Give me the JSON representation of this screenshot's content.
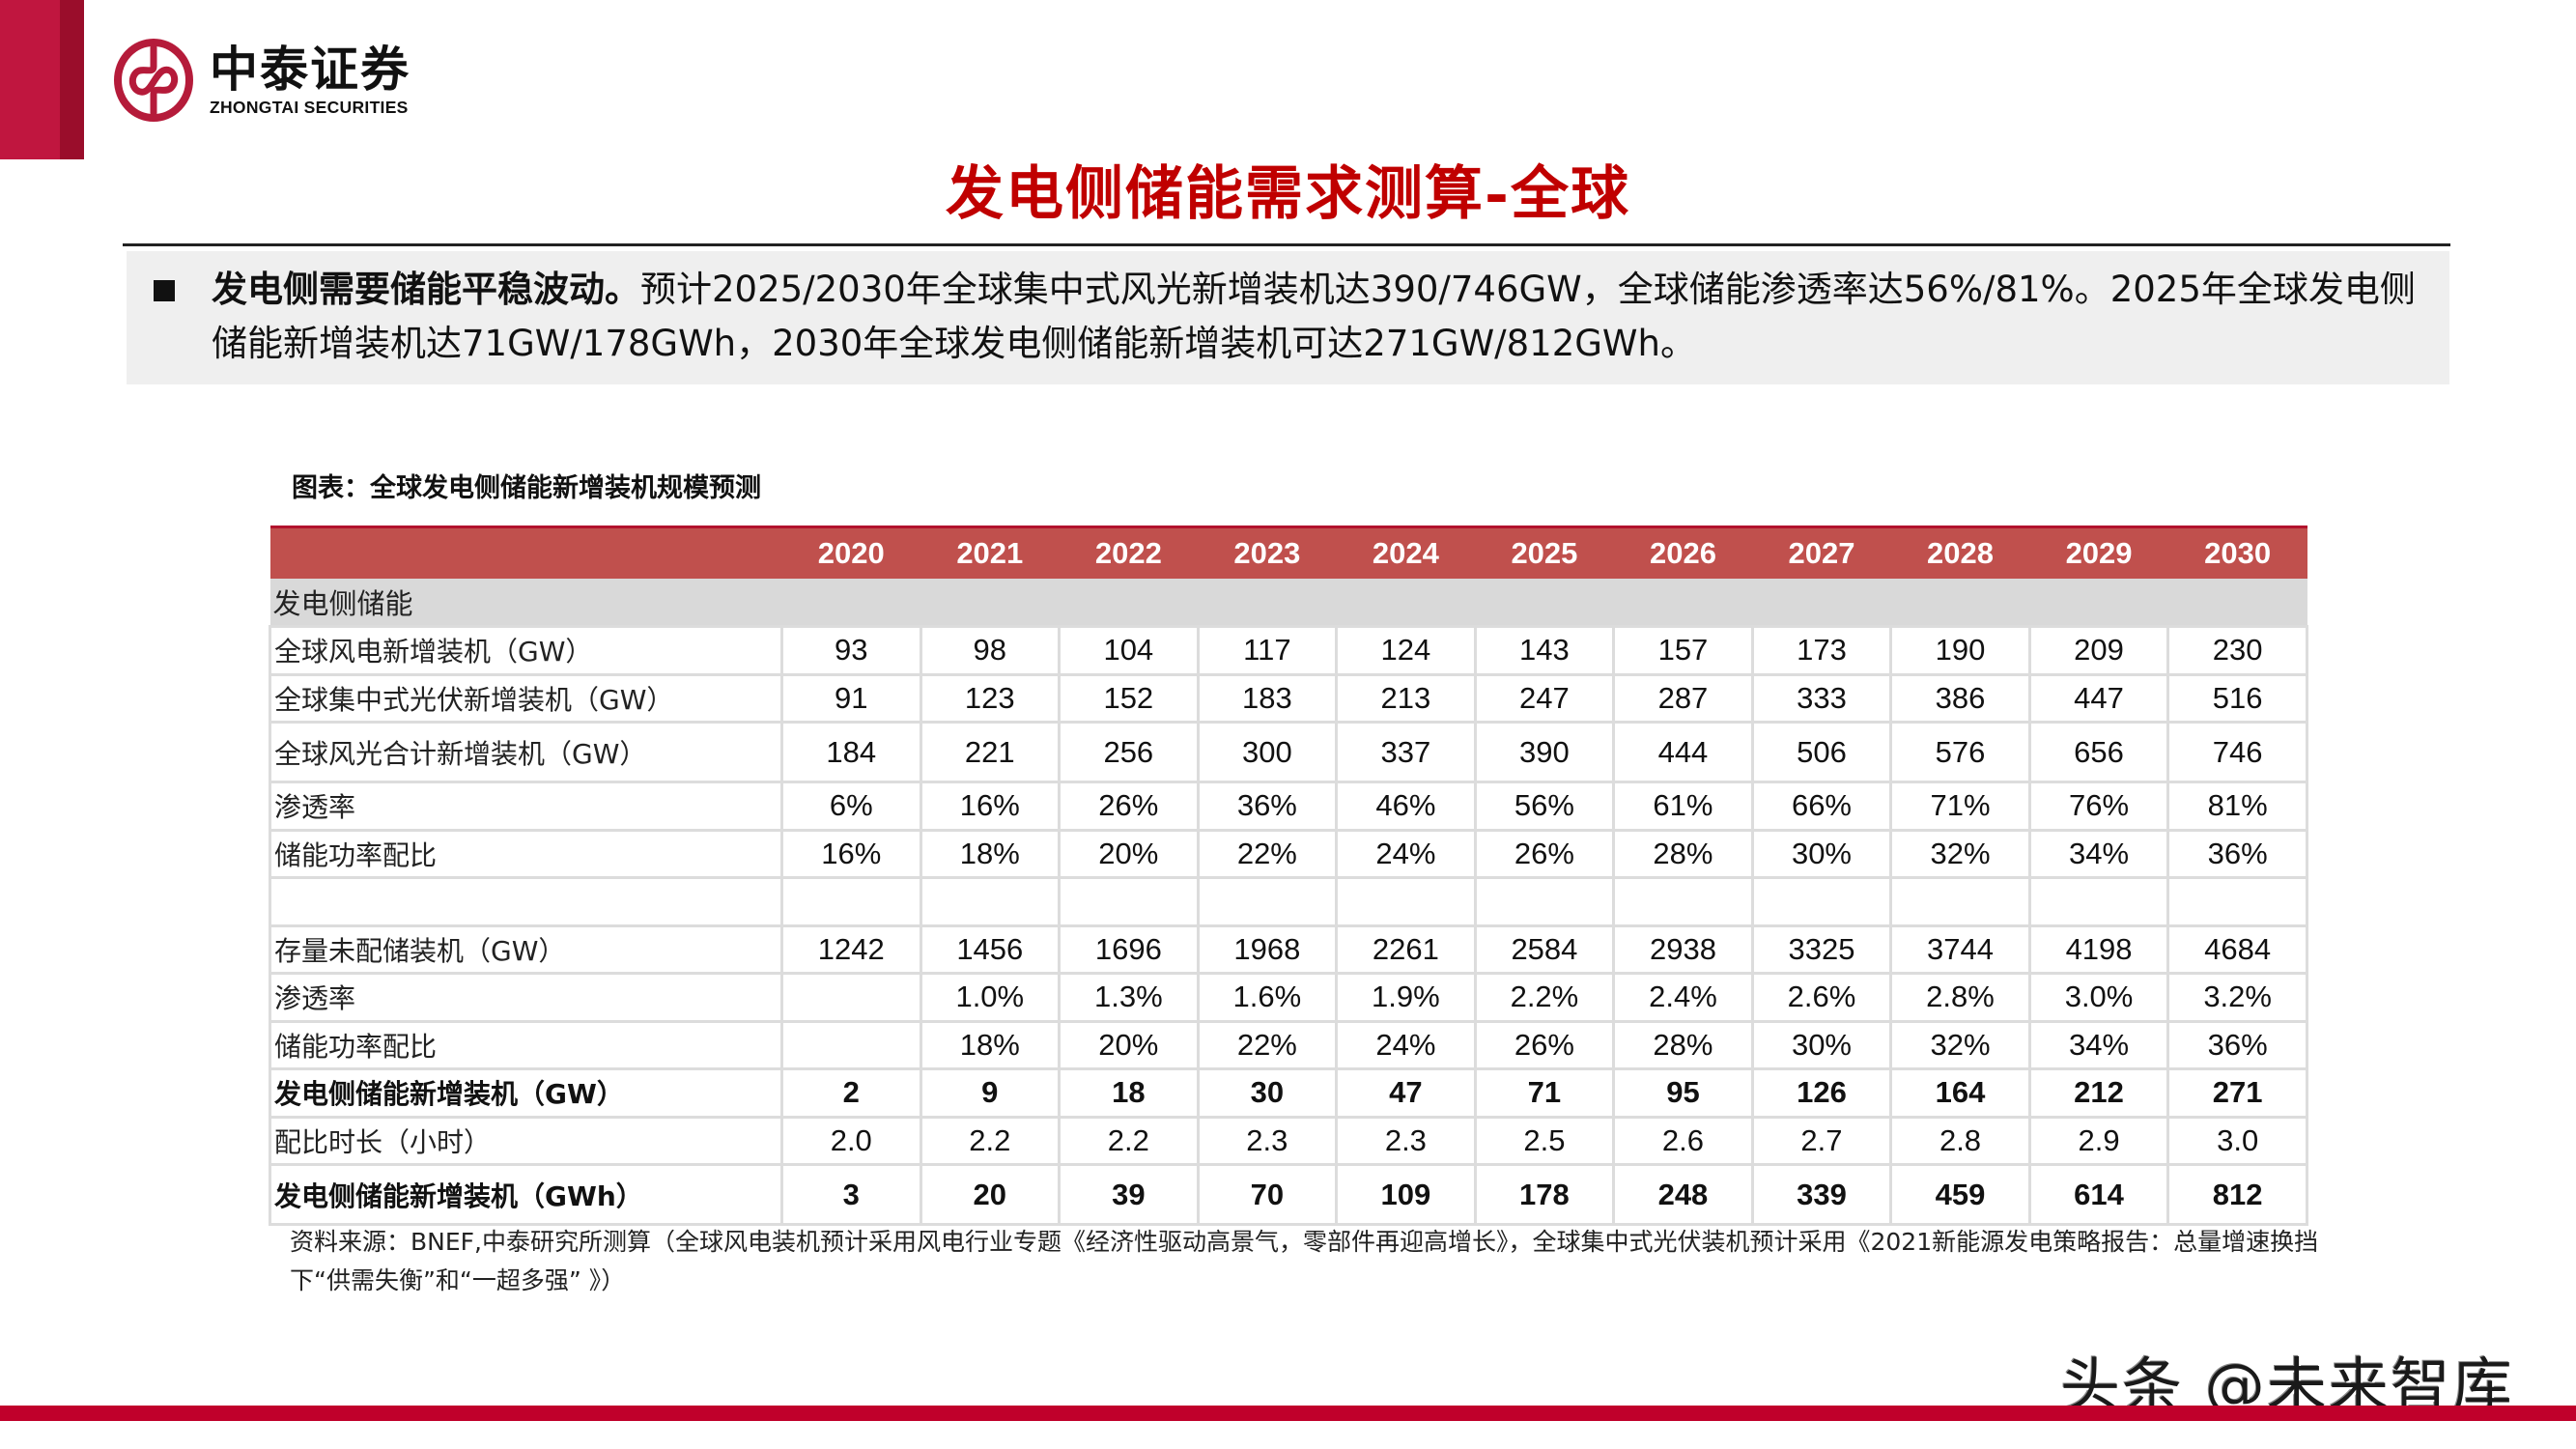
{
  "brand": {
    "name_cn": "中泰证券",
    "name_en": "ZHONGTAI SECURITIES",
    "colors": {
      "primary": "#c0163f",
      "dark": "#9a0d2b",
      "title_red": "#c00000",
      "table_header": "#c0504d"
    }
  },
  "page": {
    "title": "发电侧储能需求测算-全球"
  },
  "summary": {
    "bullet_icon": "square-bullet-icon",
    "lead_bold": "发电侧需要储能平稳波动。",
    "body": "预计2025/2030年全球集中式风光新增装机达390/746GW，全球储能渗透率达56%/81%。2025年全球发电侧储能新增装机达71GW/178GWh，2030年全球发电侧储能新增装机可达271GW/812GWh。"
  },
  "figure": {
    "caption": "图表：全球发电侧储能新增装机规模预测",
    "table": {
      "columns": [
        "",
        "2020",
        "2021",
        "2022",
        "2023",
        "2024",
        "2025",
        "2026",
        "2027",
        "2028",
        "2029",
        "2030"
      ],
      "section_label": "发电侧储能",
      "rows": [
        {
          "label": "全球风电新增装机（GW）",
          "values": [
            "93",
            "98",
            "104",
            "117",
            "124",
            "143",
            "157",
            "173",
            "190",
            "209",
            "230"
          ],
          "bold": false
        },
        {
          "label": "全球集中式光伏新增装机（GW）",
          "values": [
            "91",
            "123",
            "152",
            "183",
            "213",
            "247",
            "287",
            "333",
            "386",
            "447",
            "516"
          ],
          "bold": false
        },
        {
          "label": "全球风光合计新增装机（GW）",
          "values": [
            "184",
            "221",
            "256",
            "300",
            "337",
            "390",
            "444",
            "506",
            "576",
            "656",
            "746"
          ],
          "bold": false
        },
        {
          "label": "渗透率",
          "values": [
            "6%",
            "16%",
            "26%",
            "36%",
            "46%",
            "56%",
            "61%",
            "66%",
            "71%",
            "76%",
            "81%"
          ],
          "bold": false
        },
        {
          "label": "储能功率配比",
          "values": [
            "16%",
            "18%",
            "20%",
            "22%",
            "24%",
            "26%",
            "28%",
            "30%",
            "32%",
            "34%",
            "36%"
          ],
          "bold": false
        },
        {
          "label": "",
          "values": [
            "",
            "",
            "",
            "",
            "",
            "",
            "",
            "",
            "",
            "",
            ""
          ],
          "bold": false
        },
        {
          "label": "存量未配储装机（GW）",
          "values": [
            "1242",
            "1456",
            "1696",
            "1968",
            "2261",
            "2584",
            "2938",
            "3325",
            "3744",
            "4198",
            "4684"
          ],
          "bold": false
        },
        {
          "label": "渗透率",
          "values": [
            "",
            "1.0%",
            "1.3%",
            "1.6%",
            "1.9%",
            "2.2%",
            "2.4%",
            "2.6%",
            "2.8%",
            "3.0%",
            "3.2%"
          ],
          "bold": false
        },
        {
          "label": "储能功率配比",
          "values": [
            "",
            "18%",
            "20%",
            "22%",
            "24%",
            "26%",
            "28%",
            "30%",
            "32%",
            "34%",
            "36%"
          ],
          "bold": false
        },
        {
          "label": "发电侧储能新增装机（GW）",
          "values": [
            "2",
            "9",
            "18",
            "30",
            "47",
            "71",
            "95",
            "126",
            "164",
            "212",
            "271"
          ],
          "bold": true
        },
        {
          "label": "配比时长（小时）",
          "values": [
            "2.0",
            "2.2",
            "2.2",
            "2.3",
            "2.3",
            "2.5",
            "2.6",
            "2.7",
            "2.8",
            "2.9",
            "3.0"
          ],
          "bold": false
        },
        {
          "label": "发电侧储能新增装机（GWh）",
          "values": [
            "3",
            "20",
            "39",
            "70",
            "109",
            "178",
            "248",
            "339",
            "459",
            "614",
            "812"
          ],
          "bold": true
        }
      ]
    },
    "source": "资料来源：BNEF,中泰研究所测算（全球风电装机预计采用风电行业专题《经济性驱动高景气，零部件再迎高增长》，全球集中式光伏装机预计采用《2021新能源发电策略报告：总量增速换挡下“供需失衡”和“一超多强” 》）"
  },
  "watermark": {
    "text": "头条 @未来智库"
  }
}
